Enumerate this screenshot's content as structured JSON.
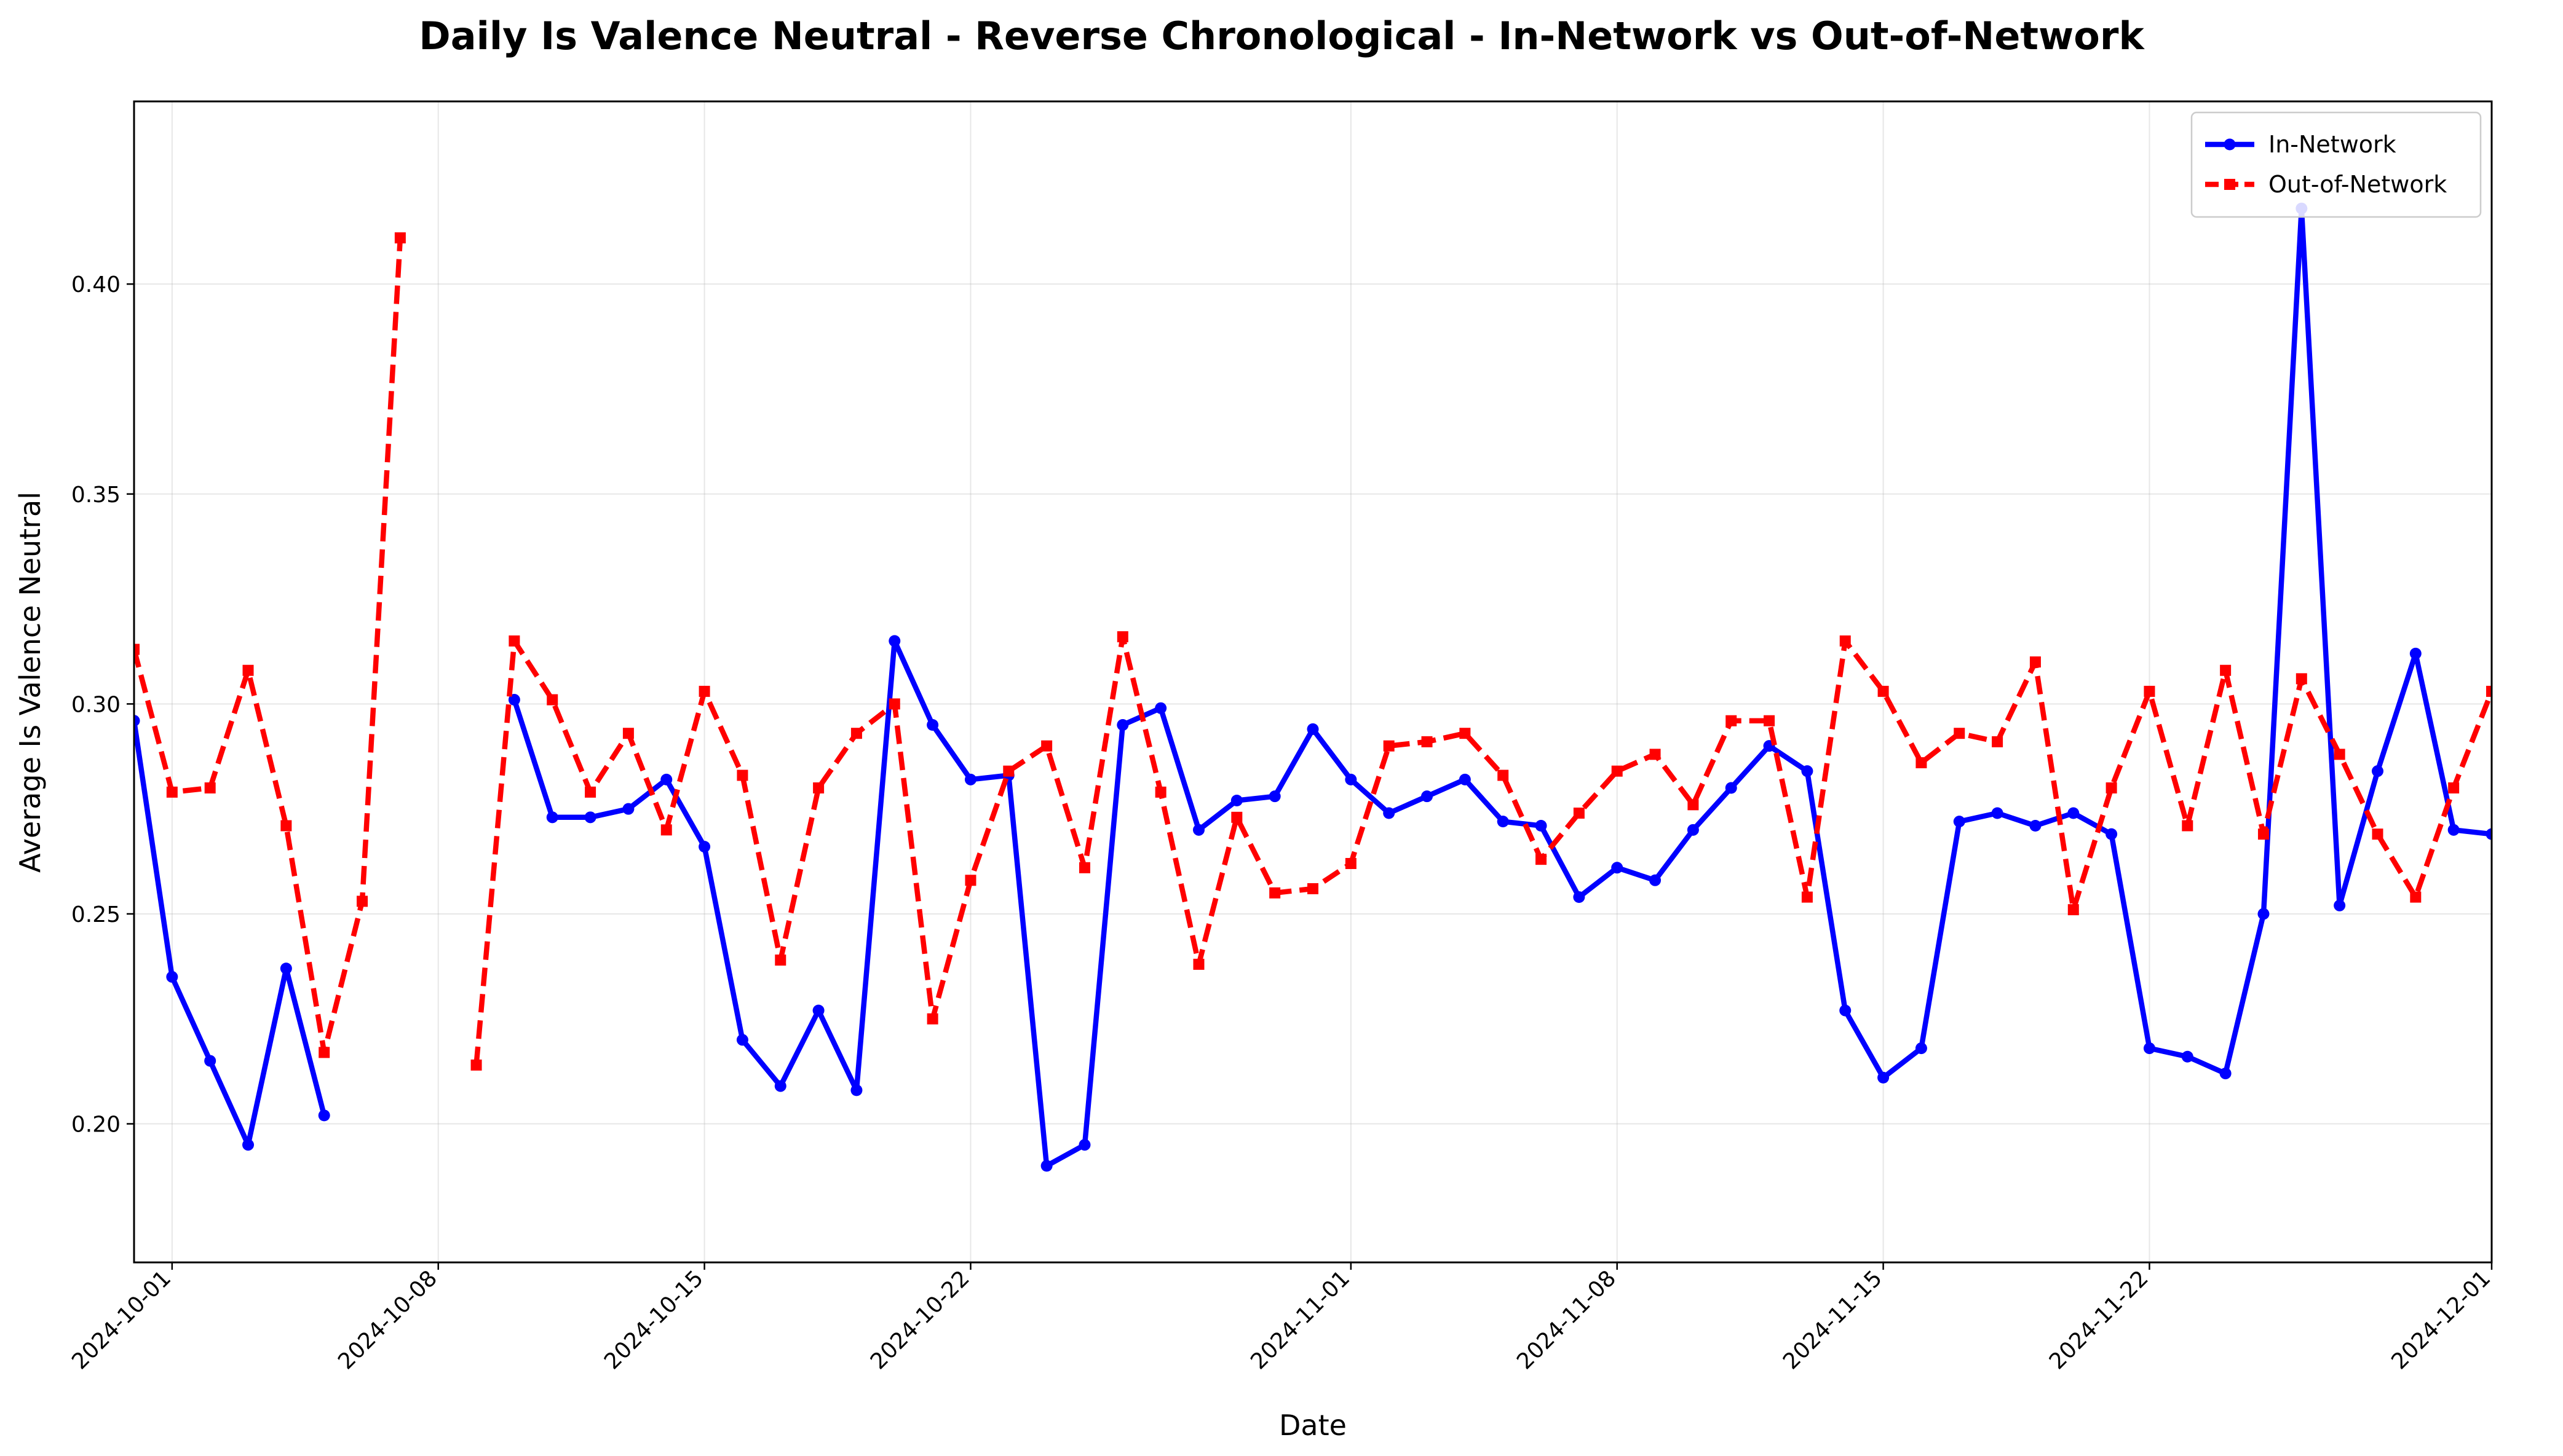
{
  "chart_data": {
    "type": "line",
    "title": "Daily Is Valence Neutral - Reverse Chronological - In-Network vs Out-of-Network",
    "xlabel": "Date",
    "ylabel": "Average Is Valence Neutral",
    "xlim": [
      "2024-09-30",
      "2024-12-01"
    ],
    "ylim": [
      0.167,
      0.4435
    ],
    "x_ticks": [
      "2024-10-01",
      "2024-10-08",
      "2024-10-15",
      "2024-10-22",
      "2024-11-01",
      "2024-11-08",
      "2024-11-15",
      "2024-11-22",
      "2024-12-01"
    ],
    "y_ticks": [
      "0.20",
      "0.25",
      "0.30",
      "0.35",
      "0.40"
    ],
    "grid": true,
    "legend_position": "top-right",
    "series": [
      {
        "name": "In-Network",
        "color": "#0000ff",
        "line_style": "solid",
        "marker": "circle",
        "x": [
          "2024-09-30",
          "2024-10-01",
          "2024-10-02",
          "2024-10-03",
          "2024-10-04",
          "2024-10-05",
          "2024-10-10",
          "2024-10-11",
          "2024-10-12",
          "2024-10-13",
          "2024-10-14",
          "2024-10-15",
          "2024-10-16",
          "2024-10-17",
          "2024-10-18",
          "2024-10-19",
          "2024-10-20",
          "2024-10-21",
          "2024-10-22",
          "2024-10-23",
          "2024-10-24",
          "2024-10-25",
          "2024-10-26",
          "2024-10-27",
          "2024-10-28",
          "2024-10-29",
          "2024-10-30",
          "2024-10-31",
          "2024-11-01",
          "2024-11-02",
          "2024-11-03",
          "2024-11-04",
          "2024-11-05",
          "2024-11-06",
          "2024-11-07",
          "2024-11-08",
          "2024-11-09",
          "2024-11-10",
          "2024-11-11",
          "2024-11-12",
          "2024-11-13",
          "2024-11-14",
          "2024-11-15",
          "2024-11-16",
          "2024-11-17",
          "2024-11-18",
          "2024-11-19",
          "2024-11-20",
          "2024-11-21",
          "2024-11-22",
          "2024-11-23",
          "2024-11-24",
          "2024-11-25",
          "2024-11-26",
          "2024-11-27",
          "2024-11-28",
          "2024-11-29",
          "2024-11-30",
          "2024-12-01"
        ],
        "values": [
          0.296,
          0.235,
          0.215,
          0.195,
          0.237,
          0.202,
          0.301,
          0.273,
          0.273,
          0.275,
          0.282,
          0.266,
          0.22,
          0.209,
          0.227,
          0.208,
          0.315,
          0.295,
          0.282,
          0.283,
          0.19,
          0.195,
          0.295,
          0.299,
          0.27,
          0.277,
          0.278,
          0.294,
          0.282,
          0.274,
          0.278,
          0.282,
          0.272,
          0.271,
          0.254,
          0.261,
          0.258,
          0.27,
          0.28,
          0.29,
          0.284,
          0.227,
          0.211,
          0.218,
          0.272,
          0.274,
          0.271,
          0.274,
          0.269,
          0.218,
          0.216,
          0.212,
          0.25,
          0.418,
          0.252,
          0.284,
          0.312,
          0.27,
          0.269
        ]
      },
      {
        "name": "Out-of-Network",
        "color": "#ff0000",
        "line_style": "dashed",
        "marker": "square",
        "x": [
          "2024-09-30",
          "2024-10-01",
          "2024-10-02",
          "2024-10-03",
          "2024-10-04",
          "2024-10-05",
          "2024-10-06",
          "2024-10-07",
          "2024-10-09",
          "2024-10-10",
          "2024-10-11",
          "2024-10-12",
          "2024-10-13",
          "2024-10-14",
          "2024-10-15",
          "2024-10-16",
          "2024-10-17",
          "2024-10-18",
          "2024-10-19",
          "2024-10-20",
          "2024-10-21",
          "2024-10-22",
          "2024-10-23",
          "2024-10-24",
          "2024-10-25",
          "2024-10-26",
          "2024-10-27",
          "2024-10-28",
          "2024-10-29",
          "2024-10-30",
          "2024-10-31",
          "2024-11-01",
          "2024-11-02",
          "2024-11-03",
          "2024-11-04",
          "2024-11-05",
          "2024-11-06",
          "2024-11-07",
          "2024-11-08",
          "2024-11-09",
          "2024-11-10",
          "2024-11-11",
          "2024-11-12",
          "2024-11-13",
          "2024-11-14",
          "2024-11-15",
          "2024-11-16",
          "2024-11-17",
          "2024-11-18",
          "2024-11-19",
          "2024-11-20",
          "2024-11-21",
          "2024-11-22",
          "2024-11-23",
          "2024-11-24",
          "2024-11-25",
          "2024-11-26",
          "2024-11-27",
          "2024-11-28",
          "2024-11-29",
          "2024-11-30",
          "2024-12-01"
        ],
        "values": [
          0.313,
          0.279,
          0.28,
          0.308,
          0.271,
          0.217,
          0.253,
          0.411,
          0.214,
          0.315,
          0.301,
          0.279,
          0.293,
          0.27,
          0.303,
          0.283,
          0.239,
          0.28,
          0.293,
          0.3,
          0.225,
          0.258,
          0.284,
          0.29,
          0.261,
          0.316,
          0.279,
          0.238,
          0.273,
          0.255,
          0.256,
          0.262,
          0.29,
          0.291,
          0.293,
          0.283,
          0.263,
          0.274,
          0.284,
          0.288,
          0.276,
          0.296,
          0.296,
          0.254,
          0.315,
          0.303,
          0.286,
          0.293,
          0.291,
          0.31,
          0.251,
          0.28,
          0.303,
          0.271,
          0.308,
          0.269,
          0.306,
          0.288,
          0.269,
          0.254,
          0.28,
          0.303
        ]
      }
    ]
  }
}
